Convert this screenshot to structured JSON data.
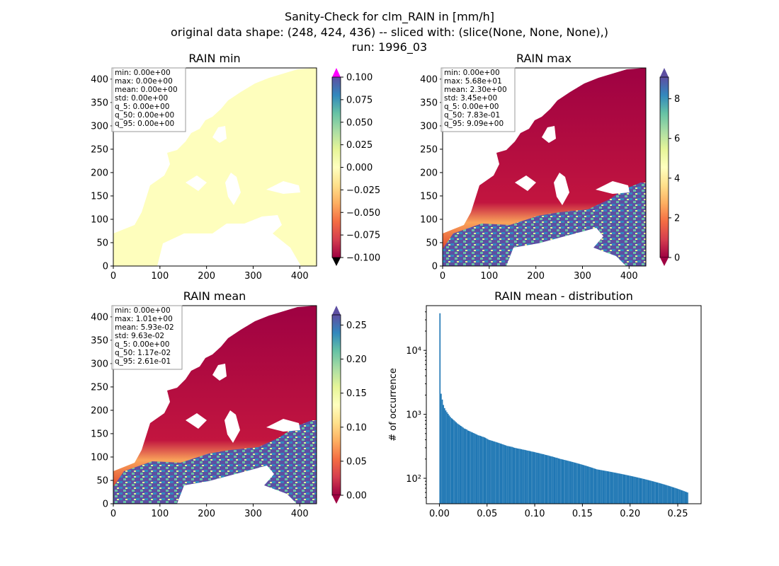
{
  "figure": {
    "title_lines": [
      "Sanity-Check for clm_RAIN in [mm/h]",
      "original data shape: (248, 424, 436) -- sliced with: (slice(None, None, None),)",
      "run: 1996_03"
    ]
  },
  "colors": {
    "land_min": "#fefebd",
    "hist_bar": "#1f77b4",
    "over_min": "#ff00ff",
    "under": "#000000",
    "spectral": [
      "#9e0142",
      "#d53e4f",
      "#f46d43",
      "#fdae61",
      "#fee08b",
      "#ffffbf",
      "#e6f598",
      "#abdda4",
      "#66c2a5",
      "#3288bd",
      "#5e4fa2"
    ]
  },
  "chart_data": [
    {
      "type": "heatmap",
      "title": "RAIN min",
      "xlim": [
        0,
        436
      ],
      "ylim": [
        0,
        424
      ],
      "x_ticks": [
        0,
        100,
        200,
        300,
        400
      ],
      "y_ticks": [
        0,
        50,
        100,
        150,
        200,
        250,
        300,
        350,
        400
      ],
      "colorbar": {
        "range": [
          -0.1,
          0.1
        ],
        "tick_labels": [
          "0.100",
          "0.075",
          "0.050",
          "0.025",
          "0.000",
          "−0.025",
          "−0.050",
          "−0.075",
          "−0.100"
        ],
        "extend": "both"
      },
      "stats": [
        "min: 0.00e+00",
        "max: 0.00e+00",
        "mean: 0.00e+00",
        "std: 0.00e+00",
        "q_5: 0.00e+00",
        "q_50: 0.00e+00",
        "q_95: 0.00e+00"
      ]
    },
    {
      "type": "heatmap",
      "title": "RAIN max",
      "xlim": [
        0,
        436
      ],
      "ylim": [
        0,
        424
      ],
      "x_ticks": [
        0,
        100,
        200,
        300,
        400
      ],
      "y_ticks": [
        0,
        50,
        100,
        150,
        200,
        250,
        300,
        350,
        400
      ],
      "colorbar": {
        "range": [
          0,
          9.09
        ],
        "tick_values": [
          0,
          2,
          4,
          6,
          8
        ],
        "tick_labels": [
          "0",
          "2",
          "4",
          "6",
          "8"
        ],
        "extend": "both"
      },
      "stats": [
        "min: 0.00e+00",
        "max: 5.68e+01",
        "mean: 2.30e+00",
        "std: 3.45e+00",
        "q_5: 0.00e+00",
        "q_50: 7.83e-01",
        "q_95: 9.09e+00"
      ]
    },
    {
      "type": "heatmap",
      "title": "RAIN mean",
      "xlim": [
        0,
        436
      ],
      "ylim": [
        0,
        424
      ],
      "x_ticks": [
        0,
        100,
        200,
        300,
        400
      ],
      "y_ticks": [
        0,
        50,
        100,
        150,
        200,
        250,
        300,
        350,
        400
      ],
      "colorbar": {
        "range": [
          0,
          0.265
        ],
        "tick_values": [
          0,
          0.05,
          0.1,
          0.15,
          0.2,
          0.25
        ],
        "tick_labels": [
          "0.00",
          "0.05",
          "0.10",
          "0.15",
          "0.20",
          "0.25"
        ],
        "extend": "both"
      },
      "stats": [
        "min: 0.00e+00",
        "max: 1.01e+00",
        "mean: 5.93e-02",
        "std: 9.63e-02",
        "q_5: 0.00e+00",
        "q_50: 1.17e-02",
        "q_95: 2.61e-01"
      ]
    },
    {
      "type": "bar",
      "title": "RAIN mean - distribution",
      "xlabel": "",
      "ylabel": "# of occurrence",
      "yscale": "log",
      "xlim": [
        -0.0137,
        0.2745
      ],
      "ylim": [
        40,
        50000
      ],
      "x_ticks": [
        0,
        0.05,
        0.1,
        0.15,
        0.2,
        0.25
      ],
      "x_tick_labels": [
        "0.00",
        "0.05",
        "0.10",
        "0.15",
        "0.20",
        "0.25"
      ],
      "y_ticks": [
        100,
        1000,
        10000
      ],
      "y_tick_labels": [
        "10²",
        "10³",
        "10⁴"
      ],
      "bins": {
        "start": 0.0,
        "end": 0.261
      },
      "values": [
        38000,
        2100,
        1700,
        1400,
        1250,
        1150,
        1080,
        1020,
        960,
        910,
        870,
        840,
        810,
        780,
        750,
        720,
        700,
        680,
        660,
        640,
        620,
        600,
        590,
        580,
        560,
        550,
        540,
        530,
        520,
        510,
        500,
        490,
        480,
        470,
        465,
        460,
        450,
        445,
        440,
        430,
        420,
        410,
        400,
        395,
        390,
        385,
        380,
        375,
        370,
        365,
        360,
        355,
        350,
        345,
        340,
        335,
        330,
        325,
        320,
        318,
        315,
        312,
        310,
        305,
        300,
        298,
        295,
        292,
        290,
        288,
        285,
        282,
        280,
        278,
        275,
        272,
        270,
        268,
        265,
        262,
        260,
        258,
        255,
        252,
        250,
        248,
        245,
        242,
        240,
        238,
        235,
        232,
        230,
        228,
        225,
        222,
        220,
        218,
        215,
        212,
        210,
        208,
        205,
        202,
        200,
        198,
        196,
        194,
        192,
        190,
        188,
        186,
        184,
        182,
        180,
        178,
        176,
        174,
        172,
        170,
        168,
        166,
        164,
        162,
        160,
        158,
        156,
        154,
        152,
        150,
        148,
        146,
        144,
        142,
        140,
        138,
        137,
        136,
        135,
        134,
        133,
        132,
        131,
        130,
        129,
        128,
        127,
        126,
        125,
        124,
        123,
        122,
        121,
        120,
        119,
        118,
        117,
        116,
        115,
        114,
        113,
        112,
        111,
        110,
        109,
        108,
        107,
        106,
        105,
        104,
        103,
        102,
        101,
        100,
        99,
        98,
        97,
        96,
        95,
        94,
        93,
        92,
        91,
        90,
        89,
        88,
        87,
        86,
        85,
        84,
        83,
        82,
        81,
        80,
        79,
        78,
        77,
        76,
        75,
        74,
        73,
        72,
        71,
        70,
        69,
        68,
        67,
        66,
        65,
        64,
        63,
        62,
        61,
        60
      ]
    }
  ]
}
